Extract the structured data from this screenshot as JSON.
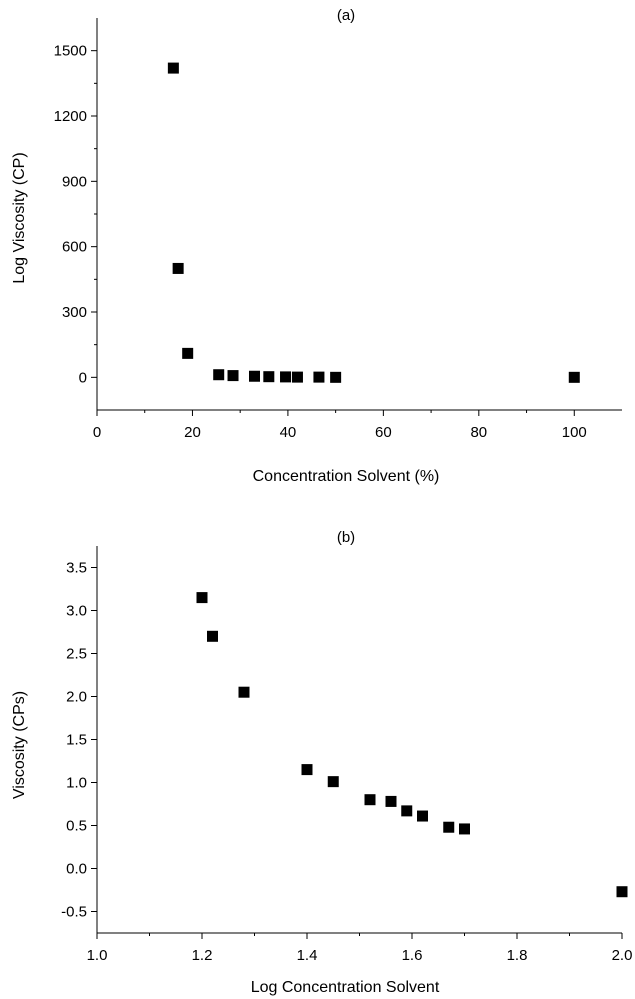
{
  "chart_data": [
    {
      "type": "scatter",
      "title": "(a)",
      "xlabel": "Concentration Solvent (%)",
      "ylabel": "Log Viscosity (CP)",
      "xlim": [
        0,
        110
      ],
      "ylim": [
        -150,
        1650
      ],
      "xticks": [
        0,
        20,
        40,
        60,
        80,
        100
      ],
      "xtick_labels": [
        "0",
        "20",
        "40",
        "60",
        "80",
        "100"
      ],
      "yticks": [
        0,
        300,
        600,
        900,
        1200,
        1500
      ],
      "ytick_labels": [
        "0",
        "300",
        "600",
        "900",
        "1200",
        "1500"
      ],
      "legend": "none",
      "grid": false,
      "marker": "square",
      "x": [
        16,
        17,
        19,
        25.5,
        28.5,
        33,
        36,
        39.5,
        42,
        46.5,
        50,
        100
      ],
      "y": [
        1420,
        500,
        110,
        12,
        8,
        5,
        3,
        2,
        1,
        1,
        0,
        0
      ]
    },
    {
      "type": "scatter",
      "title": "(b)",
      "xlabel": "Log Concentration Solvent",
      "ylabel": "Viscosity (CPs)",
      "xlim": [
        1.0,
        2.0
      ],
      "ylim": [
        -0.75,
        3.75
      ],
      "xticks": [
        1.0,
        1.2,
        1.4,
        1.6,
        1.8,
        2.0
      ],
      "xtick_labels": [
        "1.0",
        "1.2",
        "1.4",
        "1.6",
        "1.8",
        "2.0"
      ],
      "yticks": [
        -0.5,
        0.0,
        0.5,
        1.0,
        1.5,
        2.0,
        2.5,
        3.0,
        3.5
      ],
      "ytick_labels": [
        "-0.5",
        "0.0",
        "0.5",
        "1.0",
        "1.5",
        "2.0",
        "2.5",
        "3.0",
        "3.5"
      ],
      "legend": "none",
      "grid": false,
      "marker": "square",
      "x": [
        1.2,
        1.22,
        1.28,
        1.4,
        1.45,
        1.52,
        1.56,
        1.59,
        1.62,
        1.67,
        1.7,
        2.0
      ],
      "y": [
        3.15,
        2.7,
        2.05,
        1.15,
        1.01,
        0.8,
        0.78,
        0.67,
        0.61,
        0.48,
        0.46,
        -0.27
      ]
    }
  ]
}
